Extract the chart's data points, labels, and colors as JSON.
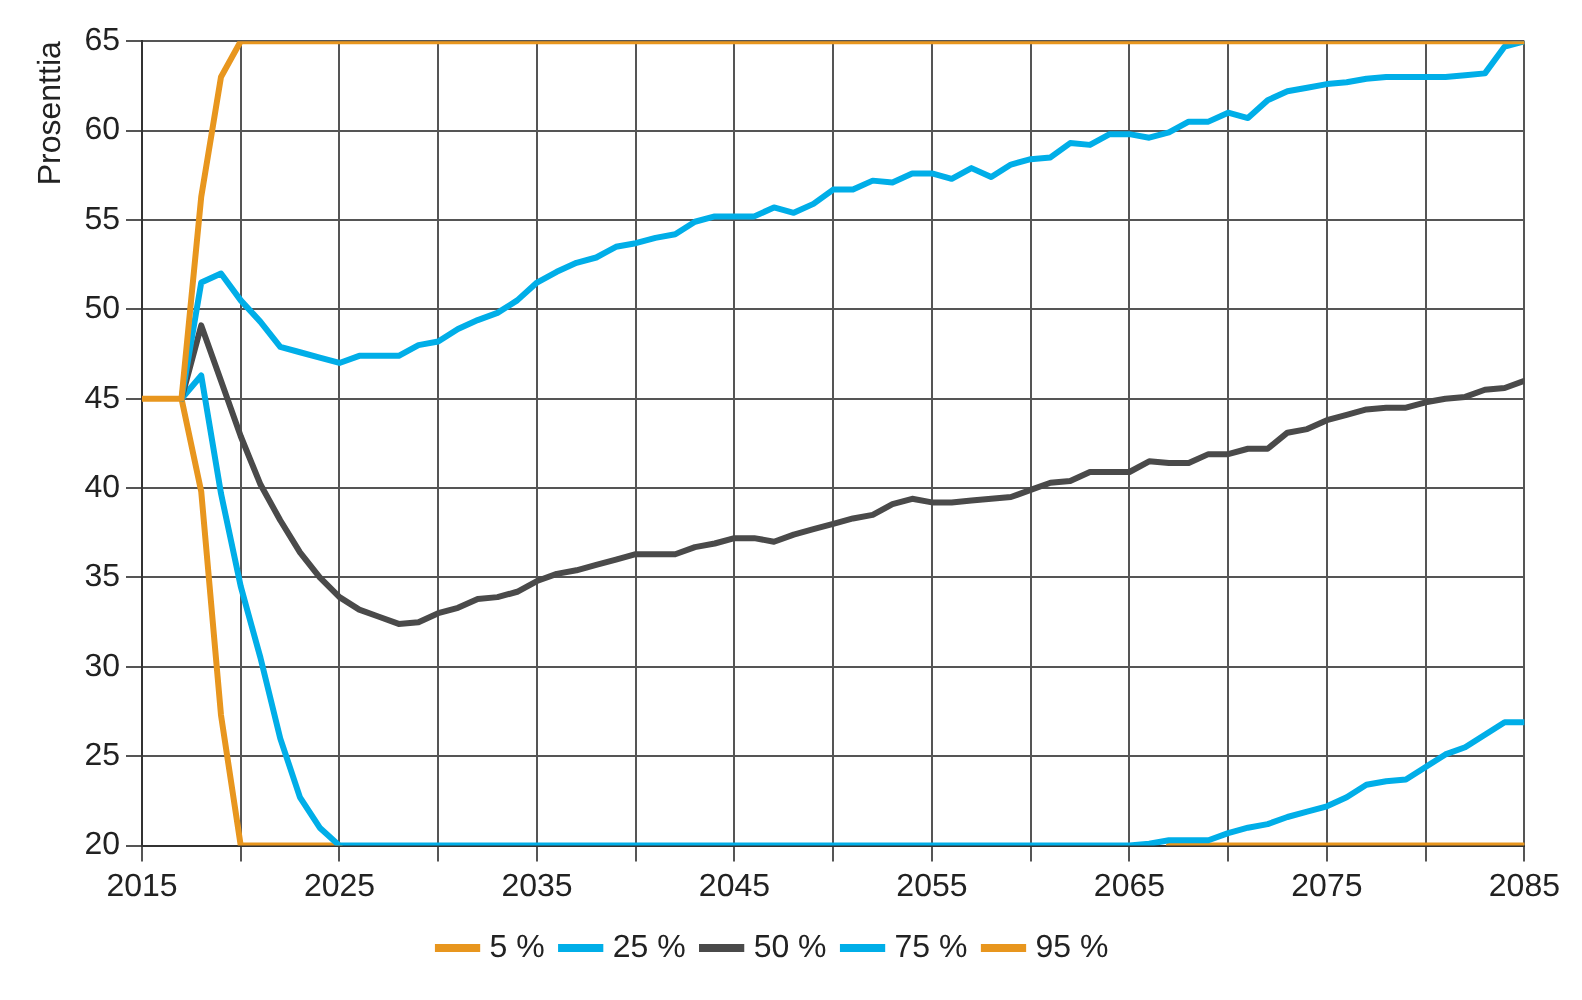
{
  "chart_data": {
    "type": "line",
    "ylabel": "Prosenttia",
    "x": [
      2015,
      2016,
      2017,
      2018,
      2019,
      2020,
      2021,
      2022,
      2023,
      2024,
      2025,
      2026,
      2027,
      2028,
      2029,
      2030,
      2031,
      2032,
      2033,
      2034,
      2035,
      2036,
      2037,
      2038,
      2039,
      2040,
      2041,
      2042,
      2043,
      2044,
      2045,
      2046,
      2047,
      2048,
      2049,
      2050,
      2051,
      2052,
      2053,
      2054,
      2055,
      2056,
      2057,
      2058,
      2059,
      2060,
      2061,
      2062,
      2063,
      2064,
      2065,
      2066,
      2067,
      2068,
      2069,
      2070,
      2071,
      2072,
      2073,
      2074,
      2075,
      2076,
      2077,
      2078,
      2079,
      2080,
      2081,
      2082,
      2083,
      2084,
      2085
    ],
    "series": [
      {
        "name": "5 %",
        "color": "#e8961e",
        "values": [
          null,
          null,
          45,
          39.8,
          27.3,
          20,
          20,
          20,
          20,
          20,
          20,
          null,
          null,
          null,
          null,
          null,
          null,
          null,
          null,
          null,
          null,
          null,
          null,
          null,
          null,
          null,
          null,
          null,
          null,
          null,
          null,
          null,
          null,
          null,
          null,
          null,
          null,
          null,
          null,
          null,
          null,
          null,
          null,
          null,
          null,
          null,
          null,
          null,
          null,
          null,
          null,
          null,
          20,
          20,
          20,
          20,
          20,
          20,
          20,
          20,
          20,
          20,
          20,
          20,
          20,
          20,
          20,
          20,
          20,
          20,
          20
        ]
      },
      {
        "name": "25 %",
        "color": "#00aee8",
        "values": [
          null,
          null,
          45,
          46.3,
          39.7,
          34.5,
          30.5,
          26,
          22.7,
          21,
          20,
          20,
          20,
          20,
          20,
          20,
          20,
          20,
          20,
          20,
          20,
          20,
          20,
          20,
          20,
          20,
          20,
          20,
          20,
          20,
          20,
          20,
          20,
          20,
          20,
          20,
          20,
          20,
          20,
          20,
          20,
          20,
          20,
          20,
          20,
          20,
          20,
          20,
          20,
          20,
          20,
          20.1,
          20.3,
          20.3,
          20.3,
          20.7,
          21.0,
          21.2,
          21.6,
          21.9,
          22.2,
          22.7,
          23.4,
          23.6,
          23.7,
          24.4,
          25.1,
          25.5,
          26.2,
          26.9,
          26.9
        ]
      },
      {
        "name": "50 %",
        "color": "#4a4a4a",
        "values": [
          null,
          null,
          45,
          49.1,
          46,
          42.9,
          40.2,
          38.2,
          36.4,
          35.0,
          33.9,
          33.2,
          32.8,
          32.4,
          32.5,
          33.0,
          33.3,
          33.8,
          33.9,
          34.2,
          34.8,
          35.2,
          35.4,
          35.7,
          36.0,
          36.3,
          36.3,
          36.3,
          36.7,
          36.9,
          37.2,
          37.2,
          37.0,
          37.4,
          37.7,
          38.0,
          38.3,
          38.5,
          39.1,
          39.4,
          39.2,
          39.2,
          39.3,
          39.4,
          39.5,
          39.9,
          40.3,
          40.4,
          40.9,
          40.9,
          40.9,
          41.5,
          41.4,
          41.4,
          41.9,
          41.9,
          42.2,
          42.2,
          43.1,
          43.3,
          43.8,
          44.1,
          44.4,
          44.5,
          44.5,
          44.8,
          45.0,
          45.1,
          45.5,
          45.6,
          46.0
        ]
      },
      {
        "name": "75 %",
        "color": "#00aee8",
        "values": [
          null,
          null,
          45,
          51.5,
          52.0,
          50.5,
          49.3,
          47.9,
          47.6,
          47.3,
          47.0,
          47.4,
          47.4,
          47.4,
          48.0,
          48.2,
          48.9,
          49.4,
          49.8,
          50.5,
          51.5,
          52.1,
          52.6,
          52.9,
          53.5,
          53.7,
          54.0,
          54.2,
          54.9,
          55.2,
          55.2,
          55.2,
          55.7,
          55.4,
          55.9,
          56.7,
          56.7,
          57.2,
          57.1,
          57.6,
          57.6,
          57.3,
          57.9,
          57.4,
          58.1,
          58.4,
          58.5,
          59.3,
          59.2,
          59.8,
          59.8,
          59.6,
          59.9,
          60.5,
          60.5,
          61.0,
          60.7,
          61.7,
          62.2,
          62.4,
          62.6,
          62.7,
          62.9,
          63.0,
          63.0,
          63.0,
          63.0,
          63.1,
          63.2,
          64.7,
          65
        ]
      },
      {
        "name": "95 %",
        "color": "#e8961e",
        "values": [
          45,
          45,
          45,
          56.3,
          63,
          65,
          65,
          65,
          65,
          65,
          65,
          65,
          65,
          65,
          65,
          65,
          65,
          65,
          65,
          65,
          65,
          65,
          65,
          65,
          65,
          65,
          65,
          65,
          65,
          65,
          65,
          65,
          65,
          65,
          65,
          65,
          65,
          65,
          65,
          65,
          65,
          65,
          65,
          65,
          65,
          65,
          65,
          65,
          65,
          65,
          65,
          65,
          65,
          65,
          65,
          65,
          65,
          65,
          65,
          65,
          65,
          65,
          65,
          65,
          65,
          65,
          65,
          65,
          65,
          65,
          65
        ]
      }
    ],
    "xlim": [
      2015,
      2085
    ],
    "xticks": [
      2015,
      {
        "value": 2020,
        "label": null
      },
      2025,
      {
        "value": 2030,
        "label": null
      },
      2035,
      {
        "value": 2040,
        "label": null
      },
      2045,
      {
        "value": 2050,
        "label": null
      },
      2055,
      {
        "value": 2060,
        "label": null
      },
      2065,
      {
        "value": 2070,
        "label": null
      },
      2075,
      {
        "value": 2080,
        "label": null
      },
      2085
    ],
    "ylim": [
      20,
      65
    ],
    "yticks": [
      20,
      25,
      30,
      35,
      40,
      45,
      50,
      55,
      60,
      65
    ],
    "grid": true,
    "legend": "bottom",
    "marker": "none",
    "line_style": "solid"
  }
}
